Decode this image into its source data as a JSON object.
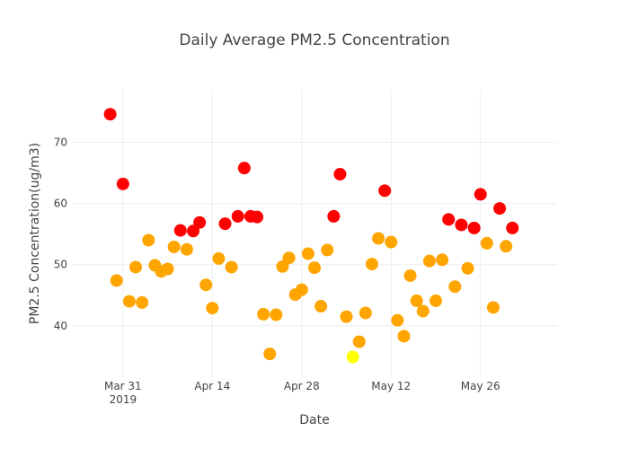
{
  "chart_data": {
    "type": "scatter",
    "title": "Daily Average PM2.5 Concentration",
    "xlabel": "Date",
    "ylabel": "PM2.5 Concentration(ug/m3)",
    "x_range": [
      "2019-03-23",
      "2019-06-07"
    ],
    "ylim": [
      31.6,
      78.6
    ],
    "grid": true,
    "legend": "none",
    "x_ticks": [
      {
        "date": "2019-03-31",
        "label": "Mar 31",
        "sublabel": "2019"
      },
      {
        "date": "2019-04-14",
        "label": "Apr 14",
        "sublabel": ""
      },
      {
        "date": "2019-04-28",
        "label": "Apr 28",
        "sublabel": ""
      },
      {
        "date": "2019-05-12",
        "label": "May 12",
        "sublabel": ""
      },
      {
        "date": "2019-05-26",
        "label": "May 26",
        "sublabel": ""
      }
    ],
    "y_ticks": [
      40,
      50,
      60,
      70
    ],
    "colors": {
      "high": "#ff0000",
      "moderate": "#ffa500",
      "low": "#ffff00"
    },
    "points": [
      {
        "x": "2019-03-29",
        "y": 74.6,
        "level": "high"
      },
      {
        "x": "2019-03-30",
        "y": 47.4,
        "level": "moderate"
      },
      {
        "x": "2019-03-31",
        "y": 63.2,
        "level": "high"
      },
      {
        "x": "2019-04-01",
        "y": 44.0,
        "level": "moderate"
      },
      {
        "x": "2019-04-02",
        "y": 49.6,
        "level": "moderate"
      },
      {
        "x": "2019-04-03",
        "y": 43.8,
        "level": "moderate"
      },
      {
        "x": "2019-04-04",
        "y": 54.0,
        "level": "moderate"
      },
      {
        "x": "2019-04-05",
        "y": 49.9,
        "level": "moderate"
      },
      {
        "x": "2019-04-06",
        "y": 48.9,
        "level": "moderate"
      },
      {
        "x": "2019-04-07",
        "y": 49.3,
        "level": "moderate"
      },
      {
        "x": "2019-04-08",
        "y": 52.9,
        "level": "moderate"
      },
      {
        "x": "2019-04-09",
        "y": 55.6,
        "level": "high"
      },
      {
        "x": "2019-04-10",
        "y": 52.5,
        "level": "moderate"
      },
      {
        "x": "2019-04-11",
        "y": 55.5,
        "level": "high"
      },
      {
        "x": "2019-04-12",
        "y": 56.9,
        "level": "high"
      },
      {
        "x": "2019-04-13",
        "y": 46.7,
        "level": "moderate"
      },
      {
        "x": "2019-04-14",
        "y": 42.9,
        "level": "moderate"
      },
      {
        "x": "2019-04-15",
        "y": 51.0,
        "level": "moderate"
      },
      {
        "x": "2019-04-16",
        "y": 56.7,
        "level": "high"
      },
      {
        "x": "2019-04-17",
        "y": 49.6,
        "level": "moderate"
      },
      {
        "x": "2019-04-18",
        "y": 57.9,
        "level": "high"
      },
      {
        "x": "2019-04-19",
        "y": 65.8,
        "level": "high"
      },
      {
        "x": "2019-04-20",
        "y": 57.9,
        "level": "high"
      },
      {
        "x": "2019-04-21",
        "y": 57.8,
        "level": "high"
      },
      {
        "x": "2019-04-22",
        "y": 41.9,
        "level": "moderate"
      },
      {
        "x": "2019-04-23",
        "y": 35.4,
        "level": "moderate"
      },
      {
        "x": "2019-04-24",
        "y": 41.8,
        "level": "moderate"
      },
      {
        "x": "2019-04-25",
        "y": 49.7,
        "level": "moderate"
      },
      {
        "x": "2019-04-26",
        "y": 51.1,
        "level": "moderate"
      },
      {
        "x": "2019-04-27",
        "y": 45.1,
        "level": "moderate"
      },
      {
        "x": "2019-04-28",
        "y": 45.9,
        "level": "moderate"
      },
      {
        "x": "2019-04-29",
        "y": 51.8,
        "level": "moderate"
      },
      {
        "x": "2019-04-30",
        "y": 49.5,
        "level": "moderate"
      },
      {
        "x": "2019-05-01",
        "y": 43.2,
        "level": "moderate"
      },
      {
        "x": "2019-05-02",
        "y": 52.4,
        "level": "moderate"
      },
      {
        "x": "2019-05-03",
        "y": 57.9,
        "level": "high"
      },
      {
        "x": "2019-05-04",
        "y": 64.8,
        "level": "high"
      },
      {
        "x": "2019-05-05",
        "y": 41.5,
        "level": "moderate"
      },
      {
        "x": "2019-05-06",
        "y": 34.9,
        "level": "low"
      },
      {
        "x": "2019-05-07",
        "y": 37.4,
        "level": "moderate"
      },
      {
        "x": "2019-05-08",
        "y": 42.1,
        "level": "moderate"
      },
      {
        "x": "2019-05-09",
        "y": 50.1,
        "level": "moderate"
      },
      {
        "x": "2019-05-10",
        "y": 54.3,
        "level": "moderate"
      },
      {
        "x": "2019-05-11",
        "y": 62.1,
        "level": "high"
      },
      {
        "x": "2019-05-12",
        "y": 53.7,
        "level": "moderate"
      },
      {
        "x": "2019-05-13",
        "y": 40.9,
        "level": "moderate"
      },
      {
        "x": "2019-05-14",
        "y": 38.3,
        "level": "moderate"
      },
      {
        "x": "2019-05-15",
        "y": 48.2,
        "level": "moderate"
      },
      {
        "x": "2019-05-16",
        "y": 44.1,
        "level": "moderate"
      },
      {
        "x": "2019-05-17",
        "y": 42.4,
        "level": "moderate"
      },
      {
        "x": "2019-05-18",
        "y": 50.6,
        "level": "moderate"
      },
      {
        "x": "2019-05-19",
        "y": 44.1,
        "level": "moderate"
      },
      {
        "x": "2019-05-20",
        "y": 50.8,
        "level": "moderate"
      },
      {
        "x": "2019-05-21",
        "y": 57.4,
        "level": "high"
      },
      {
        "x": "2019-05-22",
        "y": 46.4,
        "level": "moderate"
      },
      {
        "x": "2019-05-23",
        "y": 56.5,
        "level": "high"
      },
      {
        "x": "2019-05-24",
        "y": 49.4,
        "level": "moderate"
      },
      {
        "x": "2019-05-25",
        "y": 56.0,
        "level": "high"
      },
      {
        "x": "2019-05-26",
        "y": 61.5,
        "level": "high"
      },
      {
        "x": "2019-05-27",
        "y": 53.5,
        "level": "moderate"
      },
      {
        "x": "2019-05-28",
        "y": 43.0,
        "level": "moderate"
      },
      {
        "x": "2019-05-29",
        "y": 59.2,
        "level": "high"
      },
      {
        "x": "2019-05-30",
        "y": 53.0,
        "level": "moderate"
      },
      {
        "x": "2019-05-31",
        "y": 56.0,
        "level": "high"
      }
    ]
  }
}
